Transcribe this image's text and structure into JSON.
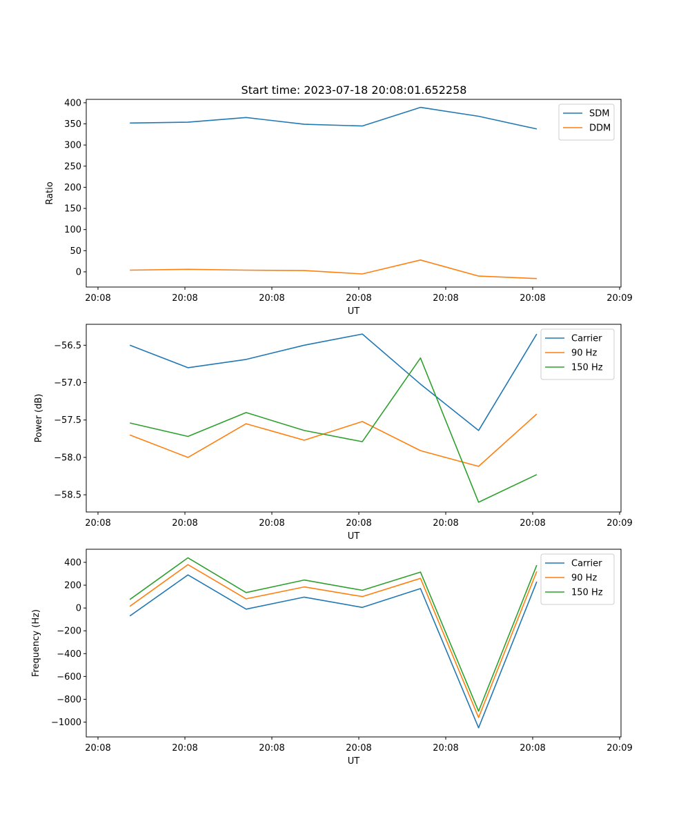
{
  "title": "Start time: 2023-07-18 20:08:01.652258",
  "colors": {
    "blue": "#1f77b4",
    "orange": "#ff7f0e",
    "green": "#2ca02c"
  },
  "chart_data": [
    {
      "type": "line",
      "ylabel": "Ratio",
      "xlabel": "UT",
      "xticklabels": [
        "20:08",
        "20:08",
        "20:08",
        "20:08",
        "20:08",
        "20:08",
        "20:09"
      ],
      "x_index": [
        0,
        1,
        2,
        3,
        4,
        5,
        6,
        7
      ],
      "xlim": [
        -0.75,
        8.45
      ],
      "ylim": [
        -36,
        408
      ],
      "yticks": [
        0,
        50,
        100,
        150,
        200,
        250,
        300,
        350,
        400
      ],
      "legend_position": "top-right",
      "series": [
        {
          "name": "SDM",
          "color": "#1f77b4",
          "values": [
            352,
            354,
            365,
            349,
            345,
            389,
            368,
            338
          ]
        },
        {
          "name": "DDM",
          "color": "#ff7f0e",
          "values": [
            4,
            6,
            4,
            3,
            -5,
            28,
            -10,
            -16
          ]
        }
      ]
    },
    {
      "type": "line",
      "ylabel": "Power (dB)",
      "xlabel": "UT",
      "xticklabels": [
        "20:08",
        "20:08",
        "20:08",
        "20:08",
        "20:08",
        "20:08",
        "20:09"
      ],
      "x_index": [
        0,
        1,
        2,
        3,
        4,
        5,
        6,
        7
      ],
      "xlim": [
        -0.75,
        8.45
      ],
      "ylim": [
        -58.73,
        -56.22
      ],
      "yticks": [
        -58.5,
        -58.0,
        -57.5,
        -57.0,
        -56.5
      ],
      "yticklabels": [
        "−58.5",
        "−58.0",
        "−57.5",
        "−57.0",
        "−56.5"
      ],
      "legend_position": "top-right",
      "series": [
        {
          "name": "Carrier",
          "color": "#1f77b4",
          "values": [
            -56.5,
            -56.8,
            -56.69,
            -56.5,
            -56.35,
            -57.02,
            -57.64,
            -56.35
          ]
        },
        {
          "name": "90 Hz",
          "color": "#ff7f0e",
          "values": [
            -57.7,
            -58.0,
            -57.55,
            -57.77,
            -57.52,
            -57.91,
            -58.12,
            -57.42
          ]
        },
        {
          "name": "150 Hz",
          "color": "#2ca02c",
          "values": [
            -57.54,
            -57.72,
            -57.4,
            -57.64,
            -57.79,
            -56.67,
            -58.6,
            -58.23
          ]
        }
      ]
    },
    {
      "type": "line",
      "ylabel": "Frequency (Hz)",
      "xlabel": "UT",
      "xticklabels": [
        "20:08",
        "20:08",
        "20:08",
        "20:08",
        "20:08",
        "20:08",
        "20:09"
      ],
      "x_index": [
        0,
        1,
        2,
        3,
        4,
        5,
        6,
        7
      ],
      "xlim": [
        -0.75,
        8.45
      ],
      "ylim": [
        -1130,
        515
      ],
      "yticks": [
        -1000,
        -800,
        -600,
        -400,
        -200,
        0,
        200,
        400
      ],
      "yticklabels": [
        "−1000",
        "−800",
        "−600",
        "−400",
        "−200",
        "0",
        "200",
        "400"
      ],
      "legend_position": "top-right",
      "series": [
        {
          "name": "Carrier",
          "color": "#1f77b4",
          "values": [
            -70,
            290,
            -10,
            95,
            5,
            170,
            -1050,
            230
          ]
        },
        {
          "name": "90 Hz",
          "color": "#ff7f0e",
          "values": [
            15,
            380,
            80,
            185,
            100,
            260,
            -960,
            320
          ]
        },
        {
          "name": "150 Hz",
          "color": "#2ca02c",
          "values": [
            75,
            440,
            135,
            245,
            155,
            315,
            -905,
            375
          ]
        }
      ]
    }
  ]
}
